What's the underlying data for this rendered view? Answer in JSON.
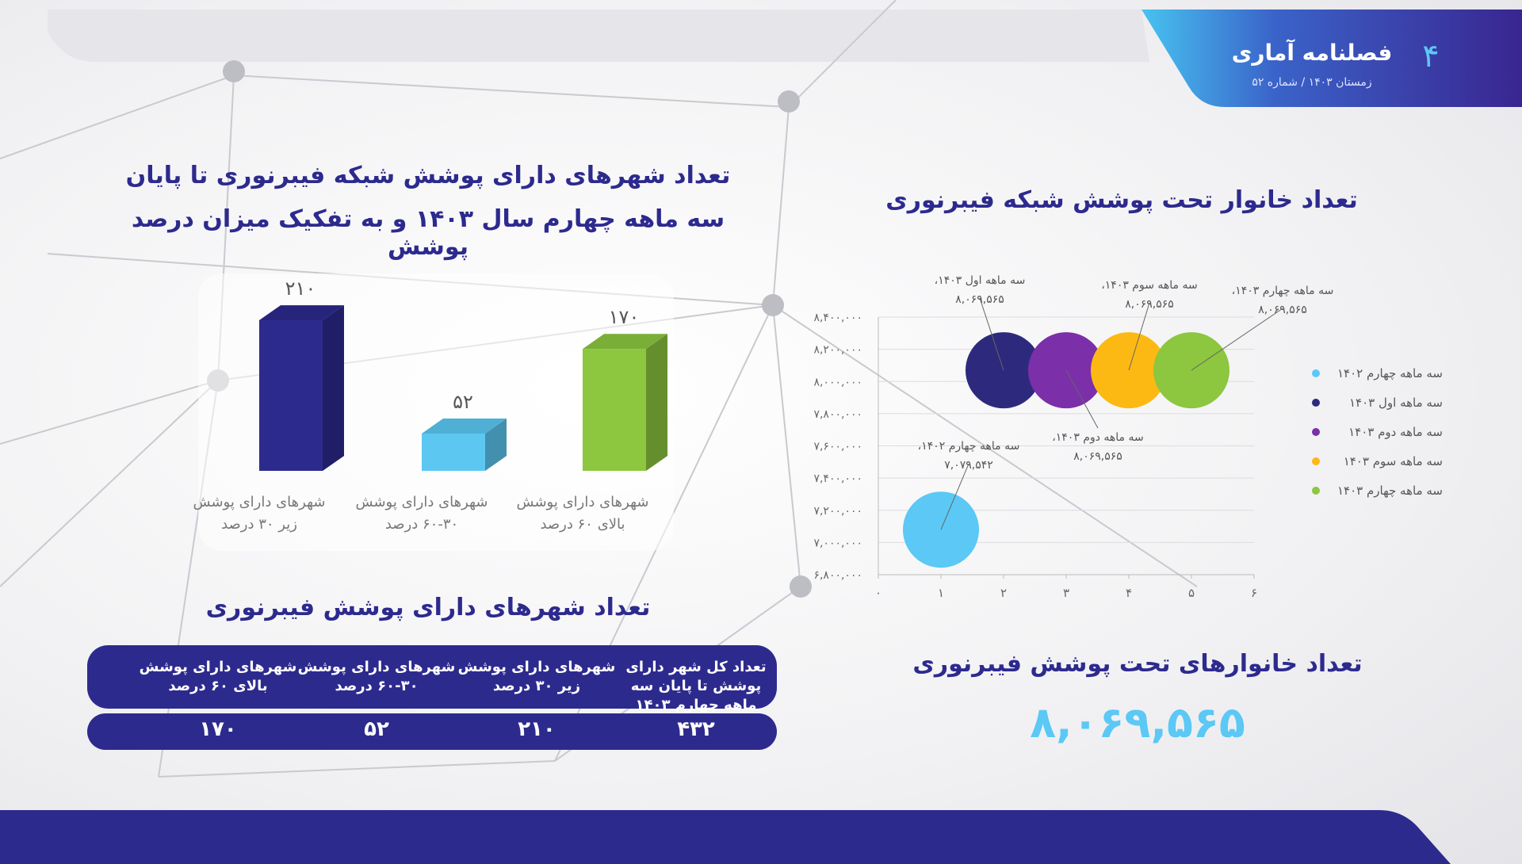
{
  "header": {
    "title": "فصلنامه آماری",
    "subtitle": "زمستان ۱۴۰۳ / شماره ۵۲",
    "page": "۴"
  },
  "chart_data": [
    {
      "type": "bar",
      "title": [
        "تعداد شهرهای دارای پوشش شبکه فیبرنوری تا پایان",
        "سه ماهه چهارم سال ۱۴۰۳ و به تفکیک میزان درصد پوشش"
      ],
      "categories": [
        "شهرهای دارای پوشش زیر ۳۰ درصد",
        "شهرهای دارای پوشش ۳۰-۶۰ درصد",
        "شهرهای دارای پوشش بالای ۶۰ درصد"
      ],
      "values": [
        210,
        52,
        170
      ],
      "value_labels": [
        "۲۱۰",
        "۵۲",
        "۱۷۰"
      ],
      "colors": [
        "#2d2a8e",
        "#5cc8f2",
        "#8dc63f"
      ]
    },
    {
      "type": "bubble",
      "title": "تعداد خانوار تحت پوشش شبکه فیبرنوری",
      "series": [
        {
          "name": "سه ماهه چهارم ۱۴۰۲",
          "color": "#5bc8f5",
          "x": [
            1
          ],
          "values": [
            7079542
          ],
          "point_labels": [
            "سه ماهه چهارم ۱۴۰۲،"
          ],
          "value_labels": [
            "۷,۰۷۹,۵۴۲"
          ]
        },
        {
          "name": "سه ماهه اول ۱۴۰۳",
          "color": "#2d2a7e",
          "x": [
            2
          ],
          "values": [
            8069565
          ],
          "point_labels": [
            "سه ماهه اول ۱۴۰۳،"
          ],
          "value_labels": [
            "۸,۰۶۹,۵۶۵"
          ]
        },
        {
          "name": "سه ماهه دوم ۱۴۰۳",
          "color": "#7b2fa8",
          "x": [
            3
          ],
          "values": [
            8069565
          ],
          "point_labels": [
            "سه ماهه دوم ۱۴۰۳،"
          ],
          "value_labels": [
            "۸,۰۶۹,۵۶۵"
          ]
        },
        {
          "name": "سه ماهه سوم ۱۴۰۳",
          "color": "#fdb913",
          "x": [
            4
          ],
          "values": [
            8069565
          ],
          "point_labels": [
            "سه ماهه سوم ۱۴۰۳،"
          ],
          "value_labels": [
            "۸,۰۶۹,۵۶۵"
          ]
        },
        {
          "name": "سه ماهه چهارم ۱۴۰۳",
          "color": "#8dc63f",
          "x": [
            5
          ],
          "values": [
            8069565
          ],
          "point_labels": [
            "سه ماهه چهارم ۱۴۰۳،"
          ],
          "value_labels": [
            "۸,۰۶۹,۵۶۵"
          ]
        }
      ],
      "xlim": [
        0,
        6
      ],
      "xticks": [
        {
          "value": 0,
          "label": "۰"
        },
        {
          "value": 1,
          "label": "۱"
        },
        {
          "value": 2,
          "label": "۲"
        },
        {
          "value": 3,
          "label": "۳"
        },
        {
          "value": 4,
          "label": "۴"
        },
        {
          "value": 5,
          "label": "۵"
        },
        {
          "value": 6,
          "label": "۶"
        }
      ],
      "ylim": [
        6800000,
        8400000
      ],
      "yticks": [
        {
          "value": 6800000,
          "label": "۶,۸۰۰,۰۰۰"
        },
        {
          "value": 7000000,
          "label": "۷,۰۰۰,۰۰۰"
        },
        {
          "value": 7200000,
          "label": "۷,۲۰۰,۰۰۰"
        },
        {
          "value": 7400000,
          "label": "۷,۴۰۰,۰۰۰"
        },
        {
          "value": 7600000,
          "label": "۷,۶۰۰,۰۰۰"
        },
        {
          "value": 7800000,
          "label": "۷,۸۰۰,۰۰۰"
        },
        {
          "value": 8000000,
          "label": "۸,۰۰۰,۰۰۰"
        },
        {
          "value": 8200000,
          "label": "۸,۲۰۰,۰۰۰"
        },
        {
          "value": 8400000,
          "label": "۸,۴۰۰,۰۰۰"
        }
      ],
      "grid": true,
      "legend": "right"
    }
  ],
  "table": {
    "title": "تعداد شهرهای دارای پوشش فیبرنوری",
    "header": [
      "تعداد کل شهر دارای پوشش تا پایان سه ماهه چهارم ۱۴۰۳",
      "شهرهای دارای پوشش زیر ۳۰ درصد",
      "شهرهای دارای پوشش ۳۰-۶۰ درصد",
      "شهرهای دارای پوشش بالای ۶۰ درصد"
    ],
    "rows": [
      [
        "۴۳۲",
        "۲۱۰",
        "۵۲",
        "۱۷۰"
      ]
    ]
  },
  "summary": {
    "title": "تعداد خانوارهای تحت پوشش فیبرنوری",
    "value": "۸,۰۶۹,۵۶۵"
  }
}
